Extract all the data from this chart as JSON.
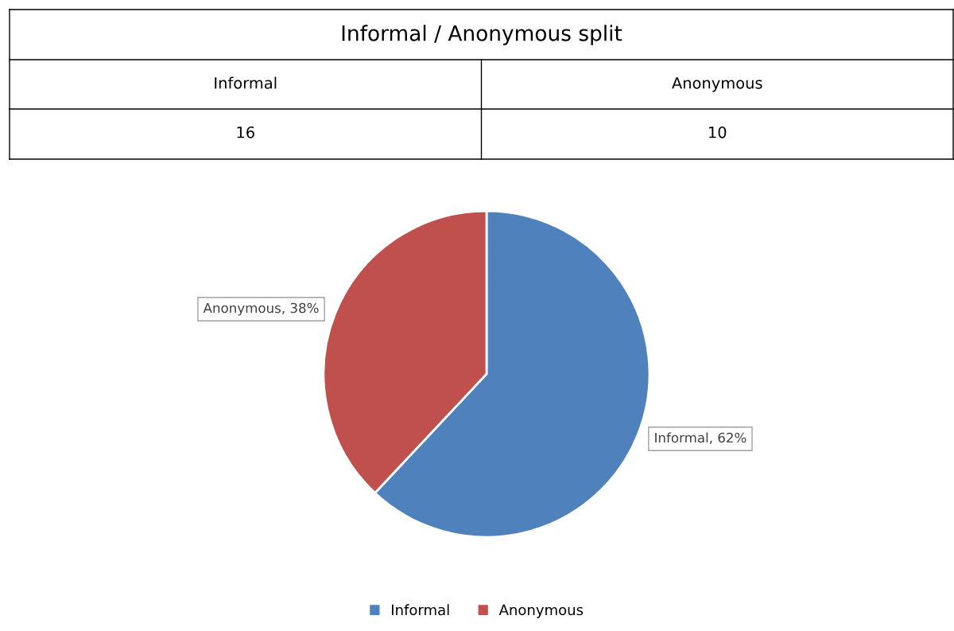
{
  "chart_data": {
    "type": "pie",
    "title": "Informal / Anonymous split",
    "categories": [
      "Informal",
      "Anonymous"
    ],
    "values": [
      62,
      38
    ],
    "annotations": [
      "16",
      "10"
    ],
    "colors": [
      "#4f81bd",
      "#c0504d"
    ],
    "value_labels": [
      "Informal, 62%",
      "Anonymous, 38%"
    ],
    "legend": "bottom"
  }
}
